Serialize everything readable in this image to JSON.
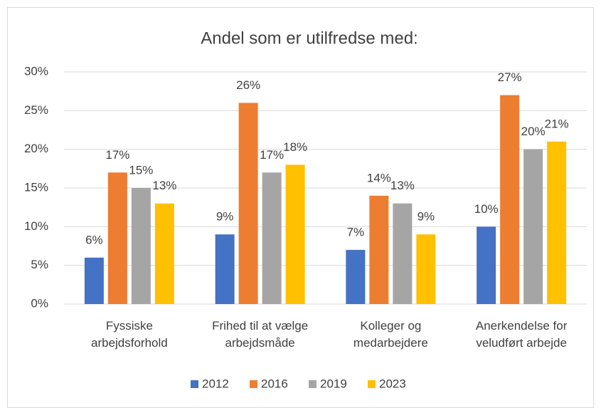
{
  "chart_data": {
    "type": "bar",
    "title": "Andel som er utilfredse med:",
    "categories": [
      "Fyssiske\narbejdsforhold",
      "Frihed til at vælge\narbejdsmåde",
      "Kolleger og\nmedarbejdere",
      "Anerkendelse for\nveludført arbejde"
    ],
    "series": [
      {
        "name": "2012",
        "color": "#4472c4",
        "values": [
          6,
          9,
          7,
          10
        ],
        "value_labels": [
          "6%",
          "9%",
          "7%",
          "10%"
        ]
      },
      {
        "name": "2016",
        "color": "#ed7d31",
        "values": [
          17,
          26,
          14,
          27
        ],
        "value_labels": [
          "17%",
          "26%",
          "14%",
          "27%"
        ]
      },
      {
        "name": "2019",
        "color": "#a5a5a5",
        "values": [
          15,
          17,
          13,
          20
        ],
        "value_labels": [
          "15%",
          "17%",
          "13%",
          "20%"
        ]
      },
      {
        "name": "2023",
        "color": "#ffc000",
        "values": [
          13,
          18,
          9,
          21
        ],
        "value_labels": [
          "13%",
          "18%",
          "9%",
          "21%"
        ]
      }
    ],
    "ylim": [
      0,
      30
    ],
    "yticks": [
      {
        "value": 0,
        "label": "0%"
      },
      {
        "value": 5,
        "label": "5%"
      },
      {
        "value": 10,
        "label": "10%"
      },
      {
        "value": 15,
        "label": "15%"
      },
      {
        "value": 20,
        "label": "20%"
      },
      {
        "value": 25,
        "label": "25%"
      },
      {
        "value": 30,
        "label": "30%"
      }
    ],
    "grid": true,
    "legend": "bottom"
  }
}
